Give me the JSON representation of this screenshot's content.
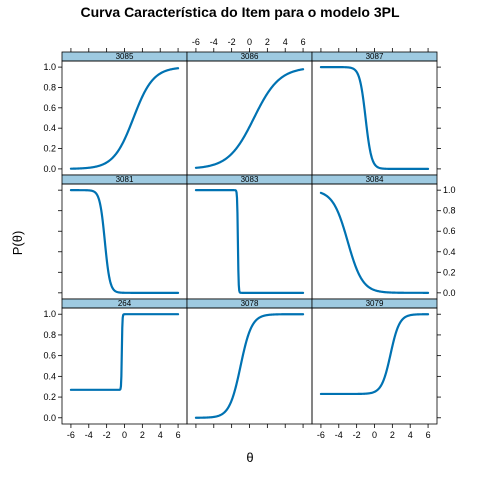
{
  "chart_data": {
    "type": "line",
    "title": "Curva Característica do Item para o modelo 3PL",
    "xlabel": "θ",
    "ylabel": "P(θ)",
    "xlim": [
      -7,
      7
    ],
    "ylim": [
      -0.06,
      1.06
    ],
    "x_ticks": [
      -6,
      -4,
      -2,
      0,
      2,
      4,
      6
    ],
    "y_ticks": [
      0.0,
      0.2,
      0.4,
      0.6,
      0.8,
      1.0
    ],
    "x_tick_labels": [
      "-6",
      "-4",
      "-2",
      "0",
      "2",
      "4",
      "6"
    ],
    "y_tick_labels": [
      "0.0",
      "0.2",
      "0.4",
      "0.6",
      "0.8",
      "1.0"
    ],
    "line_color": "#0072b2",
    "strip_color": "#9ecae1",
    "panels": [
      {
        "label": "3085",
        "row": 0,
        "col": 0,
        "a": 0.9,
        "b": 1.0,
        "c": 0.0
      },
      {
        "label": "3086",
        "row": 0,
        "col": 1,
        "a": 0.7,
        "b": 0.5,
        "c": 0.0
      },
      {
        "label": "3087",
        "row": 0,
        "col": 2,
        "a": -3.0,
        "b": -1.0,
        "c": 0.0
      },
      {
        "label": "3081",
        "row": 1,
        "col": 0,
        "a": -3.5,
        "b": -2.2,
        "c": 0.0
      },
      {
        "label": "3083",
        "row": 1,
        "col": 1,
        "a": -25,
        "b": -1.3,
        "c": 0.0
      },
      {
        "label": "3084",
        "row": 1,
        "col": 2,
        "a": -1.2,
        "b": -3.0,
        "c": 0.0
      },
      {
        "label": "264",
        "row": 2,
        "col": 0,
        "a": 30,
        "b": -0.3,
        "c": 0.27
      },
      {
        "label": "3078",
        "row": 2,
        "col": 1,
        "a": 1.6,
        "b": -1.0,
        "c": 0.0
      },
      {
        "label": "3079",
        "row": 2,
        "col": 2,
        "a": 2.0,
        "b": 1.8,
        "c": 0.23
      }
    ]
  }
}
